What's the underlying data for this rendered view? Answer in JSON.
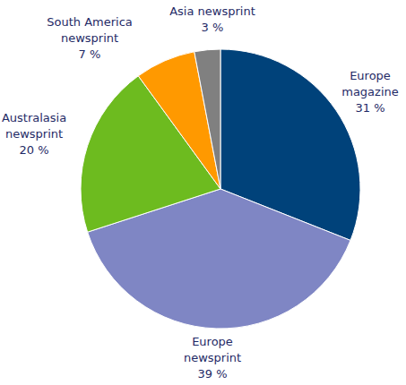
{
  "chart_data": {
    "type": "pie",
    "categories": [
      "Europe magazine",
      "Europe newsprint",
      "Australasia newsprint",
      "South America newsprint",
      "Asia newsprint"
    ],
    "values": [
      31,
      39,
      20,
      7,
      3
    ],
    "value_labels": [
      "31 %",
      "39 %",
      "20 %",
      "7 %",
      "3 %"
    ],
    "colors": [
      "#00427a",
      "#7f86c4",
      "#6dbb1f",
      "#ff9900",
      "#808080"
    ],
    "data_labels": true
  }
}
